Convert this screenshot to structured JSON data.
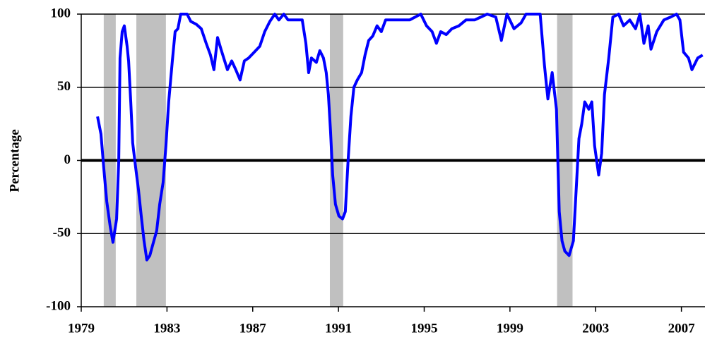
{
  "chart_data": {
    "type": "line",
    "y_label": "Percentage",
    "x": [
      1979.76,
      1979.92,
      1980.05,
      1980.19,
      1980.35,
      1980.48,
      1980.65,
      1980.75,
      1980.81,
      1980.91,
      1981.01,
      1981.14,
      1981.21,
      1981.31,
      1981.4,
      1981.54,
      1981.67,
      1981.8,
      1981.93,
      1982.06,
      1982.2,
      1982.33,
      1982.52,
      1982.66,
      1982.82,
      1982.95,
      1983.08,
      1983.25,
      1983.38,
      1983.51,
      1983.64,
      1983.94,
      1984.11,
      1984.37,
      1984.6,
      1984.83,
      1985.03,
      1985.19,
      1985.36,
      1985.52,
      1985.69,
      1985.82,
      1986.02,
      1986.21,
      1986.41,
      1986.61,
      1986.81,
      1987.07,
      1987.33,
      1987.56,
      1987.8,
      1988.03,
      1988.22,
      1988.45,
      1988.65,
      1989.31,
      1989.48,
      1989.61,
      1989.74,
      1989.97,
      1990.13,
      1990.3,
      1990.43,
      1990.53,
      1990.63,
      1990.73,
      1990.86,
      1991.02,
      1991.19,
      1991.32,
      1991.45,
      1991.58,
      1991.72,
      1991.88,
      1992.08,
      1992.24,
      1992.41,
      1992.6,
      1992.8,
      1993.0,
      1993.2,
      1993.66,
      1994.32,
      1994.84,
      1995.11,
      1995.37,
      1995.57,
      1995.77,
      1996.03,
      1996.29,
      1996.62,
      1996.95,
      1997.35,
      1997.94,
      1998.34,
      1998.6,
      1998.86,
      1999.19,
      1999.52,
      1999.75,
      2000.41,
      2000.61,
      2000.77,
      2000.97,
      2001.17,
      2001.3,
      2001.43,
      2001.56,
      2001.76,
      2001.96,
      2002.09,
      2002.22,
      2002.35,
      2002.49,
      2002.68,
      2002.82,
      2002.95,
      2003.14,
      2003.28,
      2003.41,
      2003.61,
      2003.8,
      2004.07,
      2004.3,
      2004.59,
      2004.86,
      2005.06,
      2005.25,
      2005.45,
      2005.58,
      2005.85,
      2006.18,
      2006.5,
      2006.77,
      2006.93,
      2007.1,
      2007.33,
      2007.49,
      2007.76,
      2007.99
    ],
    "series": [
      {
        "color": "#0000ff",
        "values": [
          30,
          18,
          -5,
          -28,
          -45,
          -56,
          -40,
          0,
          70,
          88,
          92,
          78,
          68,
          40,
          12,
          -5,
          -20,
          -38,
          -55,
          -68,
          -65,
          -58,
          -48,
          -30,
          -15,
          10,
          40,
          68,
          88,
          90,
          100,
          100,
          95,
          93,
          90,
          80,
          72,
          62,
          84,
          76,
          68,
          62,
          68,
          62,
          55,
          68,
          70,
          74,
          78,
          88,
          95,
          100,
          96,
          100,
          96,
          96,
          80,
          60,
          70,
          67,
          75,
          70,
          60,
          45,
          20,
          -10,
          -30,
          -38,
          -40,
          -35,
          0,
          30,
          50,
          55,
          60,
          72,
          82,
          85,
          92,
          88,
          96,
          96,
          96,
          100,
          92,
          88,
          80,
          88,
          86,
          90,
          92,
          96,
          96,
          100,
          98,
          82,
          100,
          90,
          94,
          100,
          100,
          65,
          42,
          60,
          35,
          -35,
          -55,
          -62,
          -65,
          -55,
          -20,
          15,
          25,
          40,
          35,
          40,
          10,
          -10,
          5,
          45,
          70,
          98,
          100,
          92,
          96,
          90,
          100,
          80,
          92,
          76,
          88,
          96,
          98,
          100,
          96,
          74,
          70,
          62,
          70,
          72
        ]
      }
    ],
    "xlim": [
      1979,
      2008.1
    ],
    "xticks": [
      1979,
      1983,
      1987,
      1991,
      1995,
      1999,
      2003,
      2007
    ],
    "ylim": [
      -100,
      100
    ],
    "yticks": [
      -100,
      -50,
      0,
      50,
      100
    ],
    "shaded_ranges": [
      [
        1980.05,
        1980.61
      ],
      [
        1981.57,
        1982.95
      ],
      [
        1990.6,
        1991.22
      ],
      [
        2001.2,
        2001.92
      ]
    ],
    "shade_color": "#c0c0c0",
    "grid": true,
    "zero_line": true
  }
}
